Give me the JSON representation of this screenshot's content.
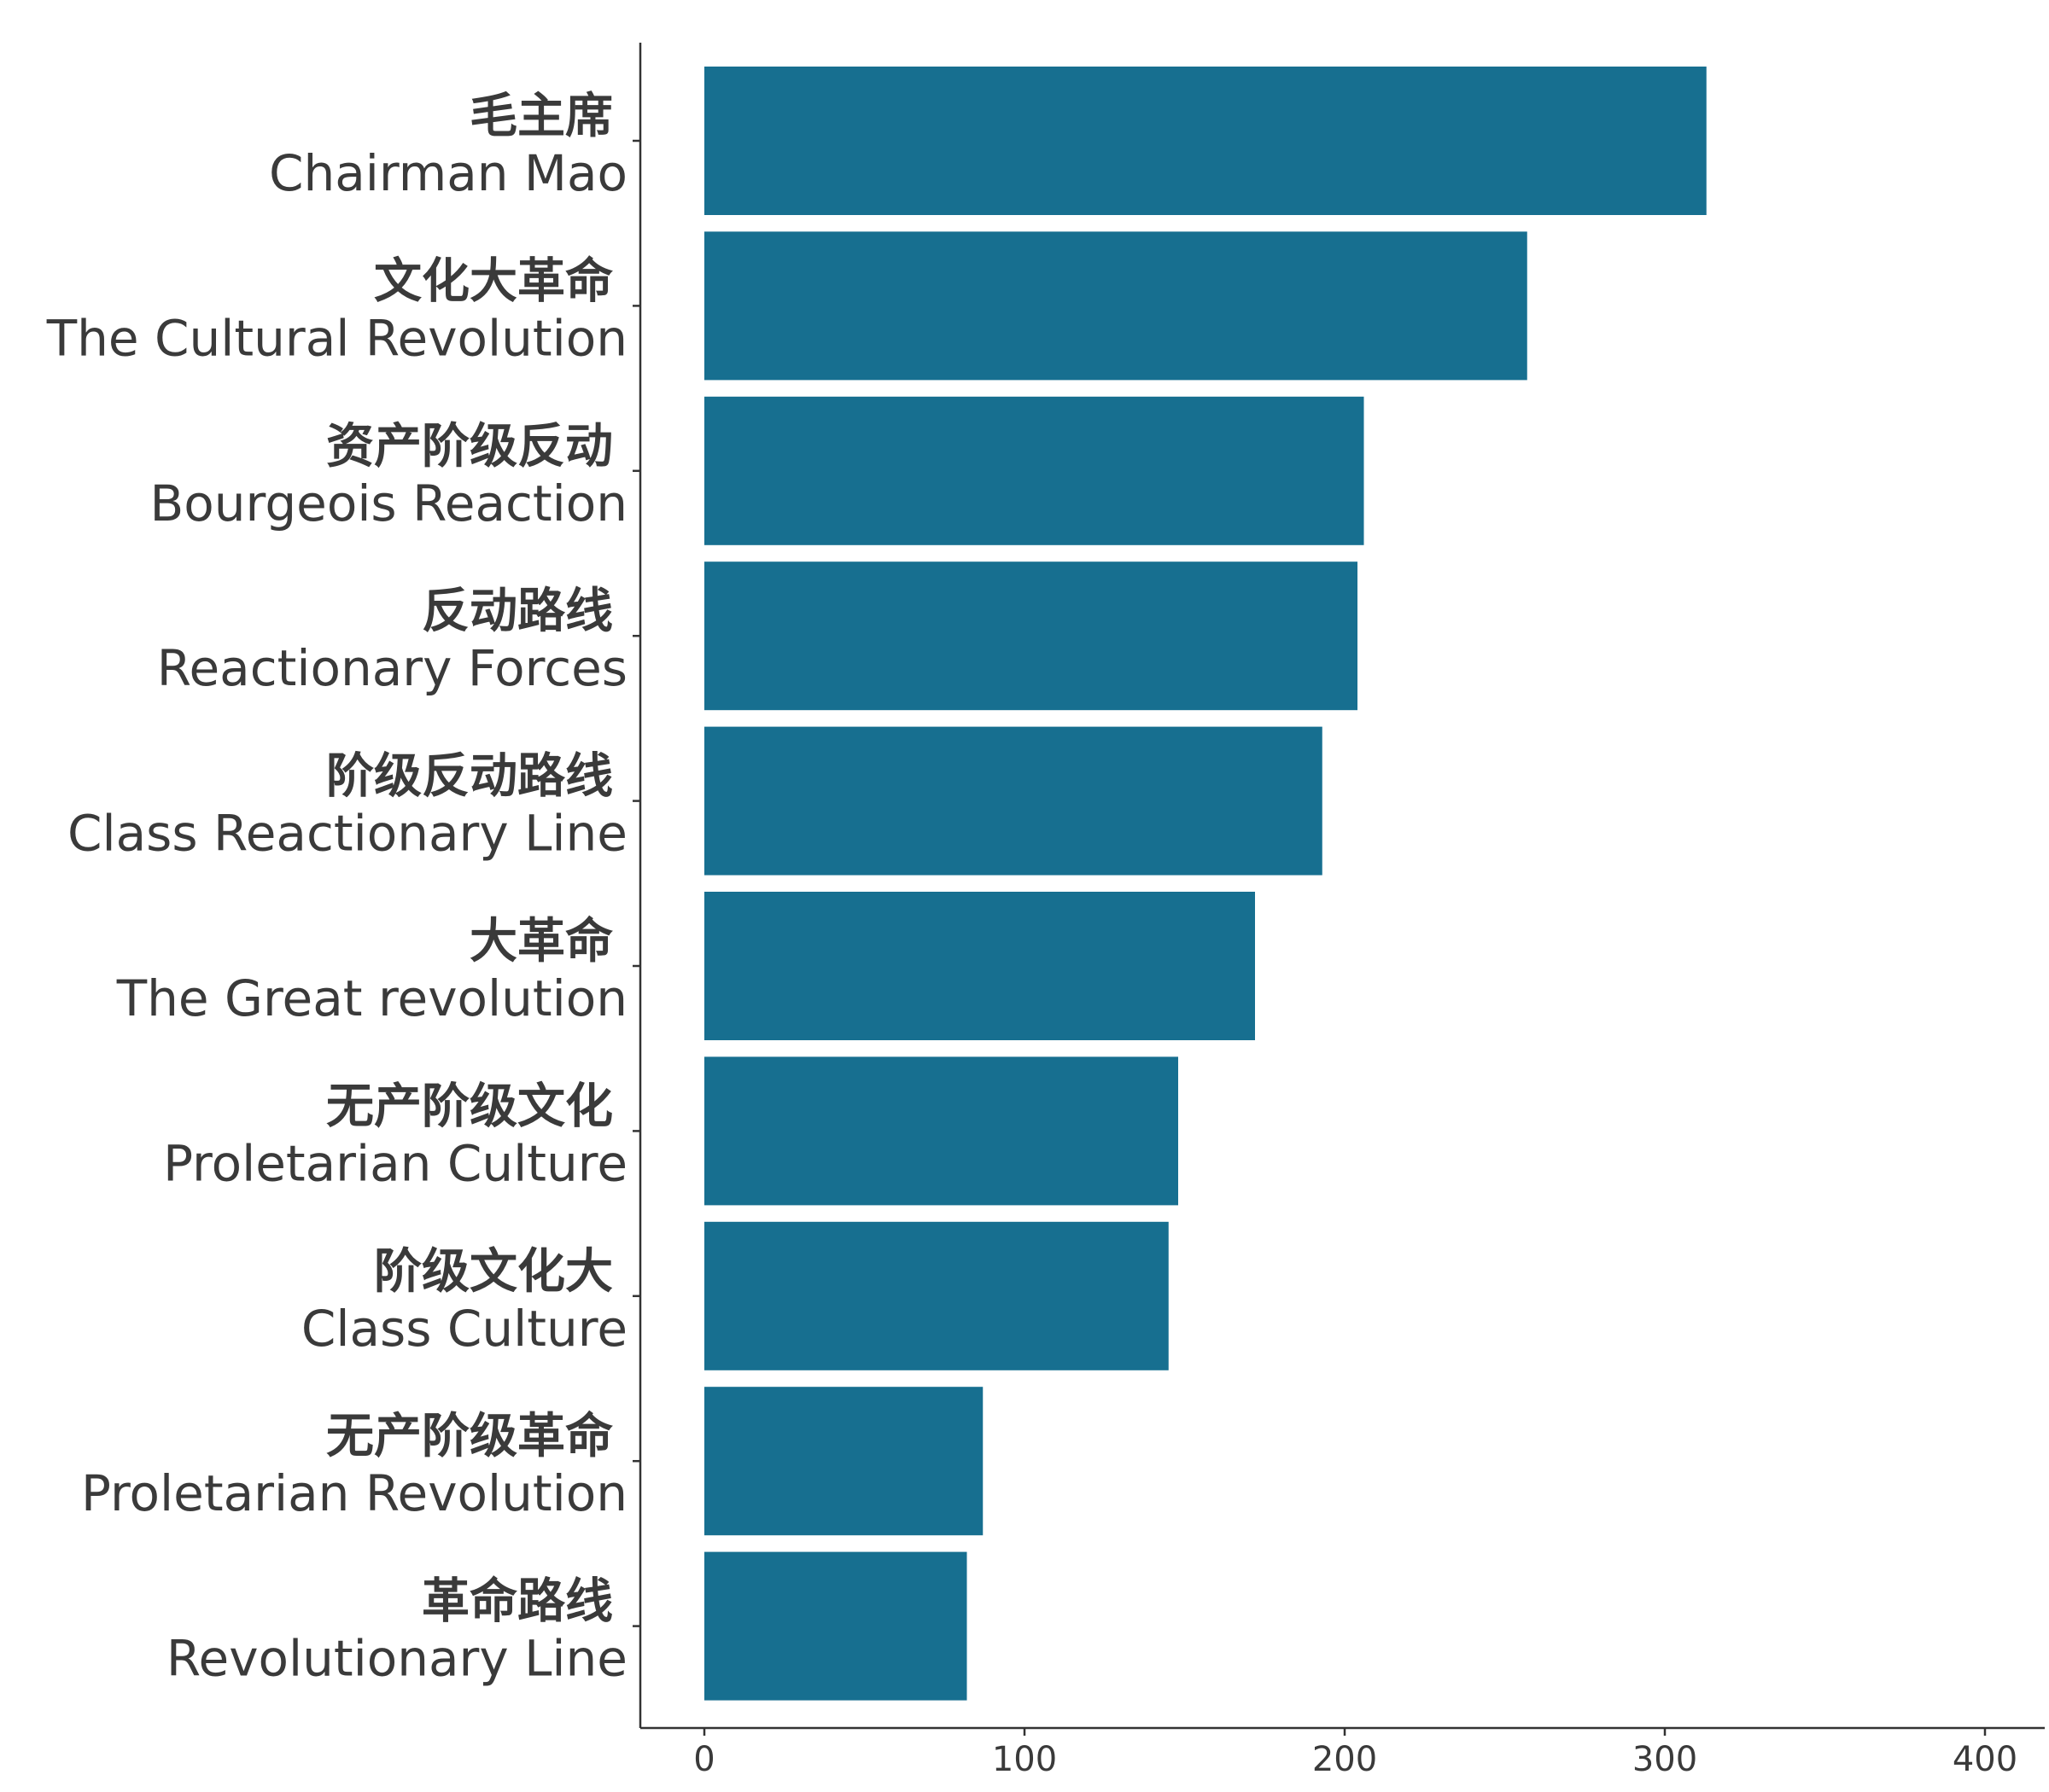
{
  "chart_data": {
    "type": "bar",
    "orientation": "horizontal",
    "title": "",
    "xlabel": "",
    "ylabel": "",
    "xlim": [
      -20,
      420
    ],
    "xticks": [
      0,
      100,
      200,
      300,
      400
    ],
    "grid": false,
    "legend": "none",
    "bar_color": "#176f90",
    "categories": [
      {
        "cn": "毛主席",
        "en": "Chairman Mao"
      },
      {
        "cn": "文化大革命",
        "en": "The Cultural Revolution"
      },
      {
        "cn": "资产阶级反动",
        "en": "Bourgeois Reaction"
      },
      {
        "cn": "反动路线",
        "en": "Reactionary Forces"
      },
      {
        "cn": "阶级反动路线",
        "en": "Class Reactionary Line"
      },
      {
        "cn": "大革命",
        "en": "The Great revolution"
      },
      {
        "cn": "无产阶级文化",
        "en": "Proletarian Culture"
      },
      {
        "cn": "阶级文化大",
        "en": "Class Culture"
      },
      {
        "cn": "无产阶级革命",
        "en": "Proletarian Revolution"
      },
      {
        "cn": "革命路线",
        "en": "Revolutionary Line"
      }
    ],
    "values": [
      313,
      257,
      206,
      204,
      193,
      172,
      148,
      145,
      87,
      82
    ]
  }
}
